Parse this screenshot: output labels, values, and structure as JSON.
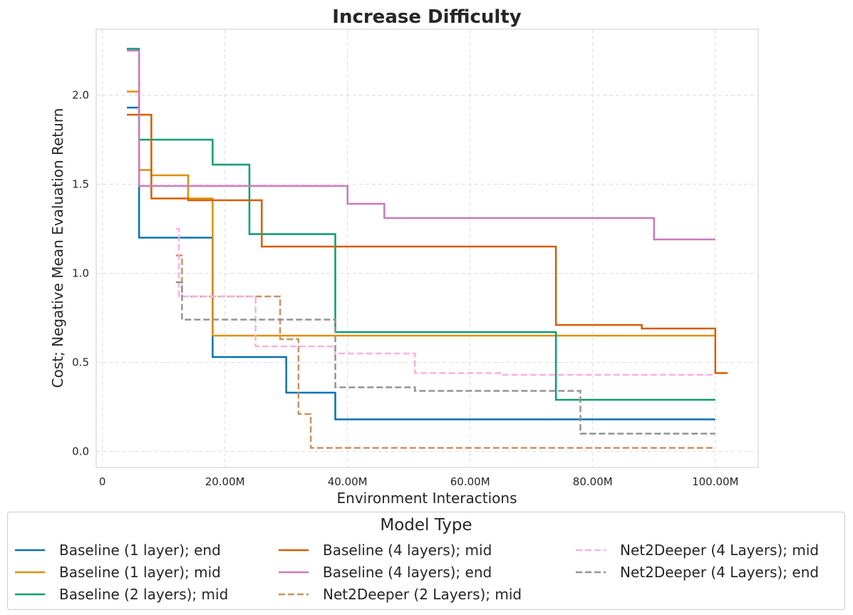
{
  "chart_data": {
    "type": "line",
    "step": true,
    "title": "Increase Difficulty",
    "xlabel": "Environment Interactions",
    "ylabel": "Cost; Negative Mean Evaluation Return",
    "xlim": [
      -1000000,
      107000000
    ],
    "ylim": [
      -0.09,
      2.37
    ],
    "x_ticks": [
      {
        "value": 0,
        "label": "0"
      },
      {
        "value": 20000000,
        "label": "20.00M"
      },
      {
        "value": 40000000,
        "label": "40.00M"
      },
      {
        "value": 60000000,
        "label": "60.00M"
      },
      {
        "value": 80000000,
        "label": "80.00M"
      },
      {
        "value": 100000000,
        "label": "100.00M"
      }
    ],
    "y_ticks": [
      {
        "value": 0.0,
        "label": "0.0"
      },
      {
        "value": 0.5,
        "label": "0.5"
      },
      {
        "value": 1.0,
        "label": "1.0"
      },
      {
        "value": 1.5,
        "label": "1.5"
      },
      {
        "value": 2.0,
        "label": "2.0"
      }
    ],
    "grid": true,
    "legend": {
      "title": "Model Type",
      "placement": "bottom",
      "columns": 3
    },
    "series": [
      {
        "name": "Baseline (1 layer); end",
        "color": "#0173b2",
        "dash": "solid",
        "x": [
          4000000,
          6000000,
          6000000,
          18000000,
          18000000,
          30000000,
          30000000,
          38000000,
          38000000,
          100000000
        ],
        "y": [
          1.93,
          1.93,
          1.2,
          1.2,
          0.53,
          0.53,
          0.33,
          0.33,
          0.18,
          0.18
        ]
      },
      {
        "name": "Baseline (1 layer); mid",
        "color": "#de8f05",
        "dash": "solid",
        "x": [
          4000000,
          6000000,
          6000000,
          8000000,
          8000000,
          14000000,
          14000000,
          18000000,
          18000000,
          100000000
        ],
        "y": [
          2.02,
          2.02,
          1.58,
          1.58,
          1.55,
          1.55,
          1.42,
          1.42,
          0.65,
          0.65
        ]
      },
      {
        "name": "Baseline (2 layers); mid",
        "color": "#029e73",
        "dash": "solid",
        "x": [
          4000000,
          6000000,
          6000000,
          18000000,
          18000000,
          24000000,
          24000000,
          38000000,
          38000000,
          74000000,
          74000000,
          100000000
        ],
        "y": [
          2.26,
          2.26,
          1.75,
          1.75,
          1.61,
          1.61,
          1.22,
          1.22,
          0.67,
          0.67,
          0.29,
          0.29
        ]
      },
      {
        "name": "Baseline (4 layers); mid",
        "color": "#d55e00",
        "dash": "solid",
        "x": [
          4000000,
          8000000,
          8000000,
          14000000,
          14000000,
          26000000,
          26000000,
          74000000,
          74000000,
          88000000,
          88000000,
          100000000,
          100000000,
          102000000
        ],
        "y": [
          1.89,
          1.89,
          1.42,
          1.42,
          1.41,
          1.41,
          1.15,
          1.15,
          0.71,
          0.71,
          0.69,
          0.69,
          0.44,
          0.44
        ]
      },
      {
        "name": "Baseline (4 layers); end",
        "color": "#cc78bc",
        "dash": "solid",
        "x": [
          4000000,
          6000000,
          6000000,
          40000000,
          40000000,
          46000000,
          46000000,
          90000000,
          90000000,
          100000000
        ],
        "y": [
          2.25,
          2.25,
          1.49,
          1.49,
          1.39,
          1.39,
          1.31,
          1.31,
          1.19,
          1.19
        ]
      },
      {
        "name": "Net2Deeper (2 Layers); mid",
        "color": "#ca9161",
        "dash": "dashed",
        "x": [
          12000000,
          13000000,
          13000000,
          29000000,
          29000000,
          32000000,
          32000000,
          34000000,
          34000000,
          100000000
        ],
        "y": [
          1.1,
          1.1,
          0.87,
          0.87,
          0.63,
          0.63,
          0.21,
          0.21,
          0.02,
          0.02
        ]
      },
      {
        "name": "Net2Deeper (4 Layers); mid",
        "color": "#fbafe4",
        "dash": "dashed",
        "x": [
          12000000,
          12500000,
          12500000,
          25000000,
          25000000,
          38000000,
          38000000,
          51000000,
          51000000,
          65000000,
          65000000,
          100000000
        ],
        "y": [
          1.25,
          1.25,
          0.87,
          0.87,
          0.59,
          0.59,
          0.55,
          0.55,
          0.44,
          0.44,
          0.43,
          0.43
        ]
      },
      {
        "name": "Net2Deeper (4 Layers); end",
        "color": "#949494",
        "dash": "dashed",
        "x": [
          12000000,
          13000000,
          13000000,
          38000000,
          38000000,
          51000000,
          51000000,
          78000000,
          78000000,
          100000000
        ],
        "y": [
          0.95,
          0.95,
          0.74,
          0.74,
          0.36,
          0.36,
          0.34,
          0.34,
          0.1,
          0.1
        ]
      }
    ],
    "legend_order": [
      0,
      3,
      6,
      1,
      4,
      7,
      2,
      5
    ]
  }
}
